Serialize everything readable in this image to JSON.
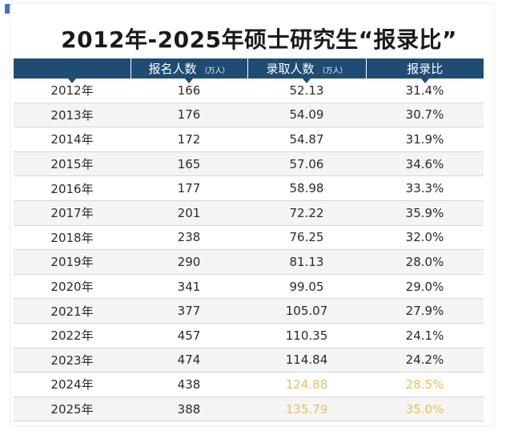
{
  "title": "2012年-2025年硕士研究生“报录比”",
  "colors": {
    "header_bg": "#1e4c72",
    "header_text": "#ffffff",
    "highlight": "#e6c15a",
    "stripe": "#f4f4f4"
  },
  "chart_data": {
    "type": "table",
    "title": "2012年-2025年硕士研究生“报录比”",
    "columns": [
      {
        "label": "",
        "unit": ""
      },
      {
        "label": "报名人数",
        "unit": "（万人）"
      },
      {
        "label": "录取人数",
        "unit": "（万人）"
      },
      {
        "label": "报录比",
        "unit": ""
      }
    ],
    "rows": [
      [
        "2012年",
        "166",
        "52.13",
        "31.4%"
      ],
      [
        "2013年",
        "176",
        "54.09",
        "30.7%"
      ],
      [
        "2014年",
        "172",
        "54.87",
        "31.9%"
      ],
      [
        "2015年",
        "165",
        "57.06",
        "34.6%"
      ],
      [
        "2016年",
        "177",
        "58.98",
        "33.3%"
      ],
      [
        "2017年",
        "201",
        "72.22",
        "35.9%"
      ],
      [
        "2018年",
        "238",
        "76.25",
        "32.0%"
      ],
      [
        "2019年",
        "290",
        "81.13",
        "28.0%"
      ],
      [
        "2020年",
        "341",
        "99.05",
        "29.0%"
      ],
      [
        "2021年",
        "377",
        "105.07",
        "27.9%"
      ],
      [
        "2022年",
        "457",
        "110.35",
        "24.1%"
      ],
      [
        "2023年",
        "474",
        "114.84",
        "24.2%"
      ],
      [
        "2024年",
        "438",
        "124.88",
        "28.5%"
      ],
      [
        "2025年",
        "388",
        "135.79",
        "35.0%"
      ]
    ],
    "highlighted_rows": [
      12,
      13
    ],
    "highlighted_columns": [
      2,
      3
    ]
  }
}
